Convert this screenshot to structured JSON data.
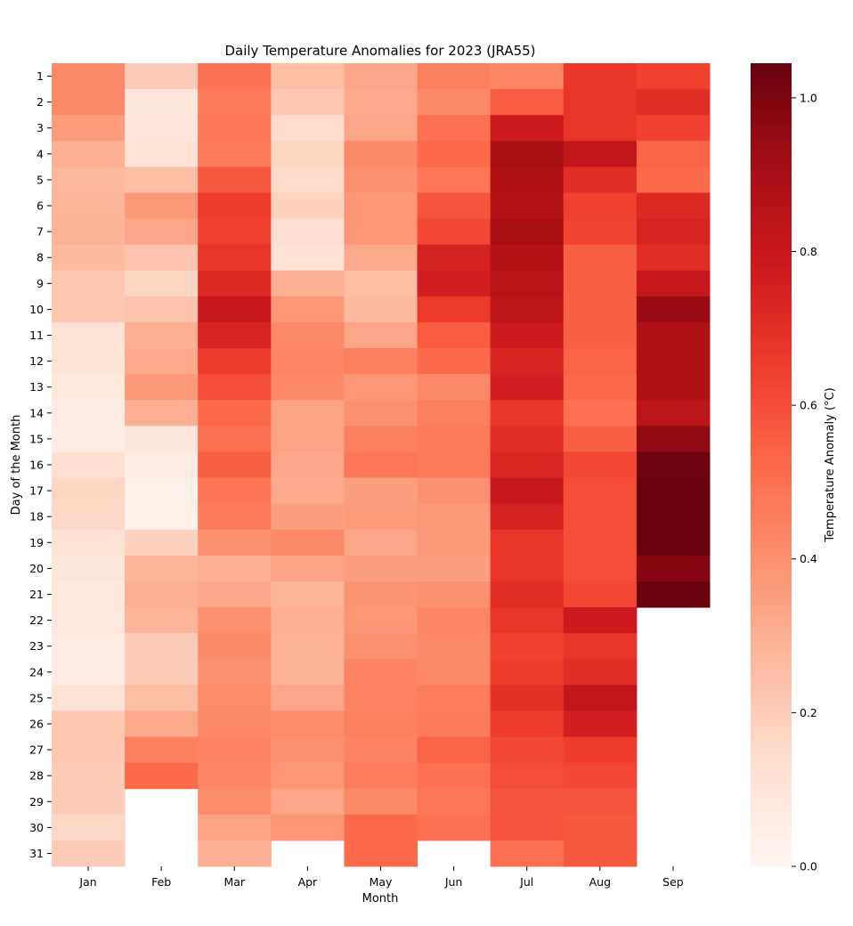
{
  "chart_data": {
    "type": "heatmap",
    "title": "Daily Temperature Anomalies for 2023 (JRA55)",
    "xlabel": "Month",
    "ylabel": "Day of the Month",
    "colorbar_label": "Temperature Anomaly (°C)",
    "colormap": "Reds",
    "color_range": [
      0.0,
      1.045
    ],
    "colorbar_ticks": [
      "0.0",
      "0.2",
      "0.4",
      "0.6",
      "0.8",
      "1.0"
    ],
    "x_categories": [
      "Jan",
      "Feb",
      "Mar",
      "Apr",
      "May",
      "Jun",
      "Jul",
      "Aug",
      "Sep"
    ],
    "y_categories": [
      "1",
      "2",
      "3",
      "4",
      "5",
      "6",
      "7",
      "8",
      "9",
      "10",
      "11",
      "12",
      "13",
      "14",
      "15",
      "16",
      "17",
      "18",
      "19",
      "20",
      "21",
      "22",
      "23",
      "24",
      "25",
      "26",
      "27",
      "28",
      "29",
      "30",
      "31"
    ],
    "series": [
      {
        "month": "Jan",
        "values": [
          0.42,
          0.42,
          0.36,
          0.3,
          0.27,
          0.28,
          0.29,
          0.26,
          0.22,
          0.22,
          0.12,
          0.12,
          0.09,
          0.06,
          0.05,
          0.13,
          0.17,
          0.16,
          0.12,
          0.1,
          0.09,
          0.08,
          0.06,
          0.06,
          0.12,
          0.22,
          0.22,
          0.2,
          0.2,
          0.16,
          0.2
        ]
      },
      {
        "month": "Feb",
        "values": [
          0.2,
          0.1,
          0.1,
          0.12,
          0.25,
          0.37,
          0.33,
          0.23,
          0.17,
          0.23,
          0.3,
          0.32,
          0.37,
          0.3,
          0.1,
          0.06,
          0.03,
          0.03,
          0.18,
          0.28,
          0.3,
          0.28,
          0.2,
          0.2,
          0.25,
          0.32,
          0.45,
          0.52
        ]
      },
      {
        "month": "Mar",
        "values": [
          0.5,
          0.47,
          0.48,
          0.47,
          0.57,
          0.65,
          0.64,
          0.68,
          0.72,
          0.8,
          0.74,
          0.66,
          0.6,
          0.52,
          0.5,
          0.55,
          0.49,
          0.47,
          0.4,
          0.3,
          0.33,
          0.4,
          0.42,
          0.4,
          0.41,
          0.42,
          0.44,
          0.43,
          0.41,
          0.34,
          0.3
        ]
      },
      {
        "month": "Apr",
        "values": [
          0.25,
          0.22,
          0.15,
          0.17,
          0.15,
          0.18,
          0.13,
          0.12,
          0.3,
          0.38,
          0.42,
          0.43,
          0.42,
          0.34,
          0.34,
          0.33,
          0.32,
          0.35,
          0.42,
          0.34,
          0.28,
          0.3,
          0.29,
          0.29,
          0.33,
          0.41,
          0.4,
          0.38,
          0.33,
          0.38
        ]
      },
      {
        "month": "May",
        "values": [
          0.33,
          0.32,
          0.33,
          0.42,
          0.4,
          0.38,
          0.38,
          0.32,
          0.25,
          0.26,
          0.33,
          0.45,
          0.38,
          0.4,
          0.45,
          0.48,
          0.35,
          0.36,
          0.33,
          0.35,
          0.39,
          0.38,
          0.4,
          0.44,
          0.44,
          0.45,
          0.44,
          0.46,
          0.42,
          0.52,
          0.52
        ]
      },
      {
        "month": "Jun",
        "values": [
          0.45,
          0.42,
          0.5,
          0.52,
          0.48,
          0.58,
          0.62,
          0.75,
          0.76,
          0.66,
          0.56,
          0.52,
          0.42,
          0.45,
          0.47,
          0.47,
          0.4,
          0.37,
          0.37,
          0.35,
          0.4,
          0.43,
          0.42,
          0.42,
          0.46,
          0.47,
          0.54,
          0.5,
          0.48,
          0.5
        ]
      },
      {
        "month": "Jul",
        "values": [
          0.43,
          0.56,
          0.78,
          0.9,
          0.88,
          0.87,
          0.9,
          0.86,
          0.85,
          0.83,
          0.78,
          0.74,
          0.76,
          0.67,
          0.7,
          0.73,
          0.8,
          0.75,
          0.68,
          0.68,
          0.7,
          0.67,
          0.64,
          0.65,
          0.69,
          0.65,
          0.62,
          0.6,
          0.58,
          0.58,
          0.5
        ]
      },
      {
        "month": "Aug",
        "values": [
          0.67,
          0.67,
          0.67,
          0.82,
          0.7,
          0.64,
          0.63,
          0.55,
          0.55,
          0.55,
          0.55,
          0.54,
          0.52,
          0.5,
          0.55,
          0.62,
          0.6,
          0.6,
          0.6,
          0.6,
          0.62,
          0.78,
          0.67,
          0.7,
          0.82,
          0.76,
          0.65,
          0.62,
          0.58,
          0.57,
          0.57
        ]
      },
      {
        "month": "Sep",
        "values": [
          0.64,
          0.7,
          0.64,
          0.54,
          0.52,
          0.72,
          0.74,
          0.7,
          0.8,
          0.94,
          0.88,
          0.88,
          0.88,
          0.84,
          0.96,
          1.03,
          1.04,
          1.04,
          1.04,
          0.98,
          1.04
        ]
      }
    ]
  }
}
